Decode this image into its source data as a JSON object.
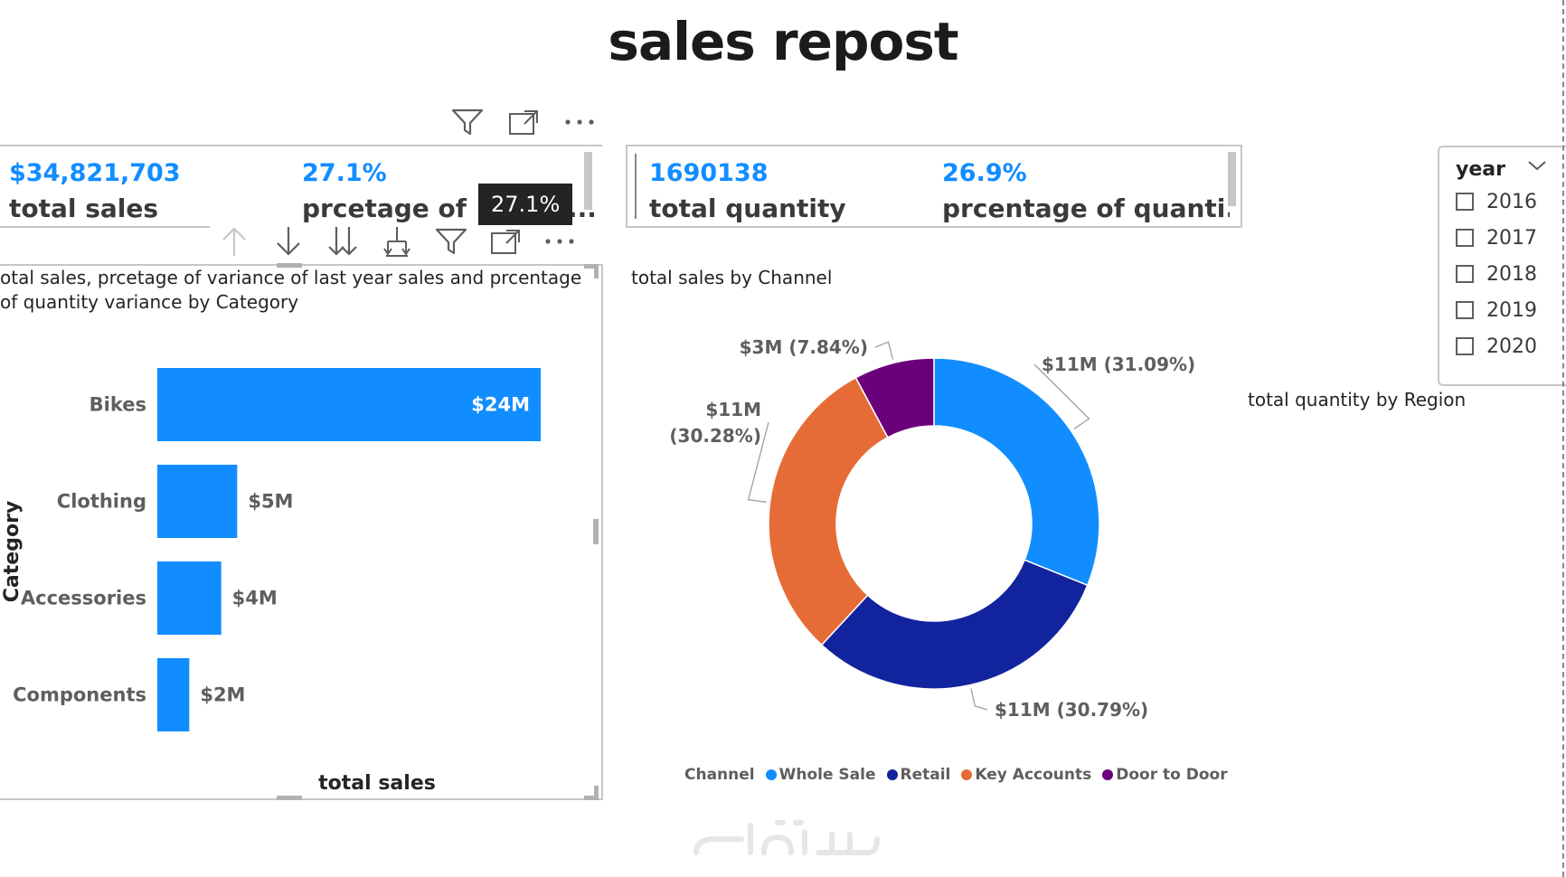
{
  "report": {
    "title": "sales repost"
  },
  "kpi_left": {
    "value1": "$34,821,703",
    "label1": "total sales",
    "value2": "27.1%",
    "label2": "prcetage of v",
    "tooltip": "27.1%",
    "more": "..."
  },
  "kpi_right": {
    "value1": "1690138",
    "label1": "total quantity",
    "value2": "26.9%",
    "label2": "prcentage of quanti..."
  },
  "bar_visual": {
    "title_line1": "otal sales, prcetage of variance of last year sales and prcentage",
    "title_line2": "of quantity variance by Category",
    "ylabel": "Category",
    "xlabel": "total sales"
  },
  "donut_visual": {
    "title": "total sales by Channel",
    "legend_title": "Channel"
  },
  "region_visual": {
    "title": "total quantity by Region"
  },
  "slicer": {
    "title": "year",
    "options": [
      "2016",
      "2017",
      "2018",
      "2019",
      "2020"
    ]
  },
  "icons": [
    "filter-icon",
    "focus-mode-icon",
    "more-options-icon",
    "drill-up-icon",
    "drill-down-icon",
    "expand-all-icon",
    "expand-hierarchy-icon",
    "chevron-down-icon"
  ],
  "colors": {
    "accent": "#118dff",
    "whole_sale": "#118dff",
    "retail": "#12239e",
    "key_accounts": "#e66c37",
    "door_to_door": "#6b007b"
  },
  "chart_data": [
    {
      "type": "bar",
      "orientation": "horizontal",
      "categories": [
        "Bikes",
        "Clothing",
        "Accessories",
        "Components"
      ],
      "values": [
        24,
        5,
        4,
        2
      ],
      "data_labels": [
        "$24M",
        "$5M",
        "$4M",
        "$2M"
      ],
      "unit": "$M",
      "ylabel": "Category",
      "xlabel": "total sales",
      "color": "#118dff"
    },
    {
      "type": "pie",
      "variant": "donut",
      "title": "total sales by Channel",
      "categories": [
        "Whole Sale",
        "Retail",
        "Key Accounts",
        "Door to Door"
      ],
      "values": [
        31.09,
        30.79,
        30.28,
        7.84
      ],
      "data_labels": [
        "$11M (31.09%)",
        "$11M (30.79%)",
        "$11M (30.28%)",
        "$3M (7.84%)"
      ],
      "colors": [
        "#118dff",
        "#12239e",
        "#e66c37",
        "#6b007b"
      ],
      "legend_title": "Channel",
      "legend_position": "bottom"
    }
  ]
}
